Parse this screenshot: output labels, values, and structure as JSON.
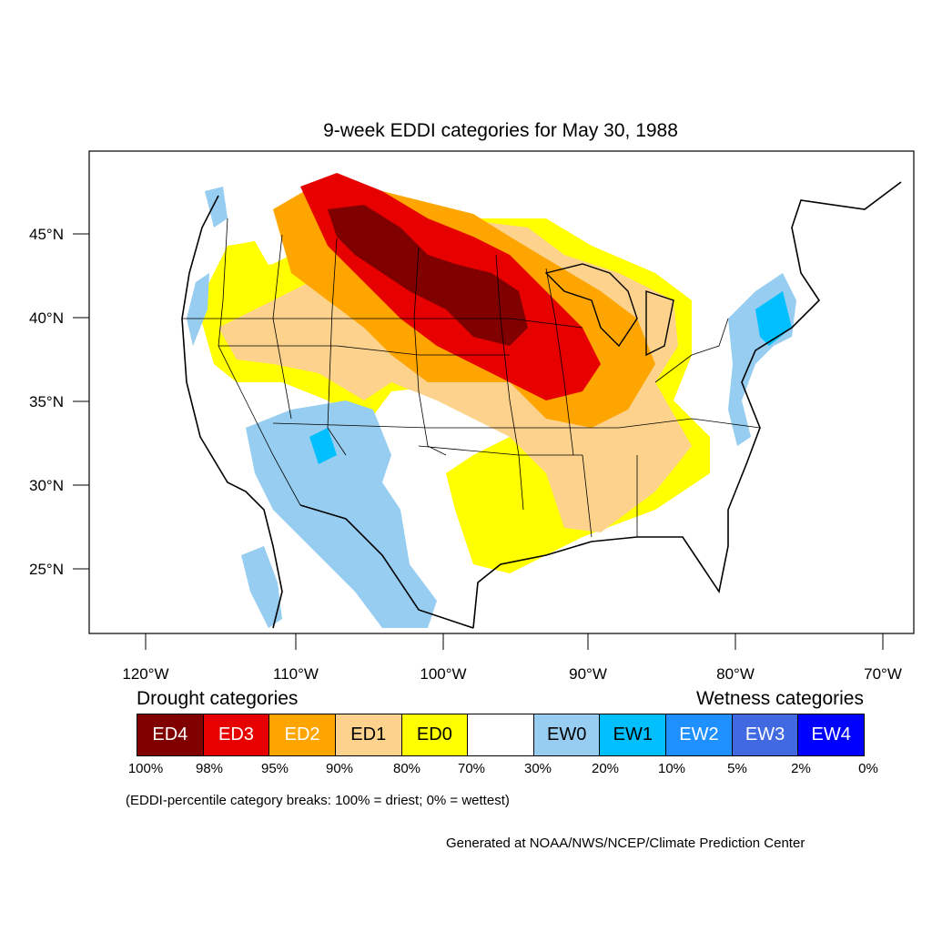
{
  "title": "9-week EDDI categories for May 30, 1988",
  "axes": {
    "lat_labels": [
      "45°N",
      "40°N",
      "35°N",
      "30°N",
      "25°N"
    ],
    "lon_labels": [
      "120°W",
      "110°W",
      "100°W",
      "90°W",
      "80°W",
      "70°W"
    ]
  },
  "legend": {
    "drought_heading": "Drought categories",
    "wetness_heading": "Wetness categories",
    "categories": [
      {
        "label": "ED4",
        "color": "#800000",
        "text_color": "#ffffff"
      },
      {
        "label": "ED3",
        "color": "#e60000",
        "text_color": "#ffffff"
      },
      {
        "label": "ED2",
        "color": "#ffa500",
        "text_color": "#ffffff"
      },
      {
        "label": "ED1",
        "color": "#fcd28c",
        "text_color": "#000000"
      },
      {
        "label": "ED0",
        "color": "#ffff00",
        "text_color": "#000000"
      },
      {
        "label": "",
        "color": "#ffffff",
        "text_color": "#000000"
      },
      {
        "label": "EW0",
        "color": "#96cdf0",
        "text_color": "#000000"
      },
      {
        "label": "EW1",
        "color": "#00bfff",
        "text_color": "#000000"
      },
      {
        "label": "EW2",
        "color": "#1e90ff",
        "text_color": "#ffffff"
      },
      {
        "label": "EW3",
        "color": "#4169e1",
        "text_color": "#ffffff"
      },
      {
        "label": "EW4",
        "color": "#0000ff",
        "text_color": "#ffffff"
      }
    ],
    "breaks": [
      "100%",
      "98%",
      "95%",
      "90%",
      "80%",
      "70%",
      "30%",
      "20%",
      "10%",
      "5%",
      "2%",
      "0%"
    ]
  },
  "note": "(EDDI-percentile category breaks: 100% = driest; 0% = wettest)",
  "credit": "Generated at NOAA/NWS/NCEP/Climate Prediction Center"
}
